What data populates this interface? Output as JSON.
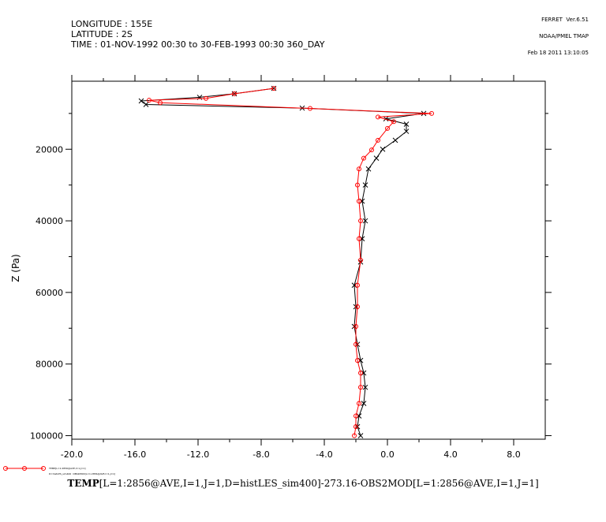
{
  "stamp": {
    "line1": "FERRET  Ver.6.51",
    "line2": "NOAA/PMEL TMAP",
    "line3": "Feb 18 2011 13:10:05"
  },
  "header": {
    "longitude": "LONGITUDE : 155E",
    "latitude": "LATITUDE : 2S",
    "time": "TIME : 01-NOV-1992 00:30 to 30-FEB-1993 00:30 360_DAY"
  },
  "caption": {
    "prefix": "TEMP",
    "rest": "[L=1:2856@AVE,I=1,J=1,D=histLES_sim400]-273.16-OBS2MOD[L=1:2856@AVE,I=1,J=1]"
  },
  "legend": {
    "line1": "TEMP[L=1:2856@AVE,I=1,J=1]",
    "line2": "D=histLES_sim400  OBS2MOD[L=1:2856@AVE,I=1,J=1]"
  },
  "colors": {
    "series_black": "#000000",
    "series_red": "#ff0000",
    "axis": "#000000"
  },
  "chart_data": {
    "type": "line",
    "title": "",
    "xlabel": "",
    "ylabel": "Z (Pa)",
    "xlim": [
      -20,
      10
    ],
    "ylim": [
      101000,
      1000
    ],
    "y_inverted": true,
    "x_ticks": [
      -20,
      -16,
      -12,
      -8,
      -4,
      0,
      4,
      8
    ],
    "x_tick_labels": [
      "-20.0",
      "-16.0",
      "-12.0",
      "-8.0",
      "-4.0",
      "0.0",
      "4.0",
      "8.0"
    ],
    "x_minor_ticks": [
      -18,
      -14,
      -10,
      -6,
      -2,
      2,
      6
    ],
    "y_ticks": [
      20000,
      40000,
      60000,
      80000,
      100000
    ],
    "y_tick_labels": [
      "20000",
      "40000",
      "60000",
      "80000",
      "100000"
    ],
    "y_minor_ticks": [
      10000,
      30000,
      50000,
      70000,
      90000
    ],
    "series": [
      {
        "marker": "x",
        "points": [
          [
            -7.2,
            3000
          ],
          [
            -9.7,
            4500
          ],
          [
            -11.9,
            5500
          ],
          [
            -15.6,
            6500
          ],
          [
            -15.3,
            7500
          ],
          [
            -5.4,
            8500
          ],
          [
            2.3,
            10000
          ],
          [
            -0.1,
            11500
          ],
          [
            1.2,
            13000
          ],
          [
            1.2,
            15000
          ],
          [
            0.5,
            17500
          ],
          [
            -0.3,
            20000
          ],
          [
            -0.7,
            22500
          ],
          [
            -1.2,
            25500
          ],
          [
            -1.4,
            30000
          ],
          [
            -1.6,
            34500
          ],
          [
            -1.4,
            40000
          ],
          [
            -1.6,
            45000
          ],
          [
            -1.7,
            51500
          ],
          [
            -2.1,
            58000
          ],
          [
            -2.0,
            64000
          ],
          [
            -2.1,
            69500
          ],
          [
            -1.9,
            74500
          ],
          [
            -1.7,
            79000
          ],
          [
            -1.5,
            82500
          ],
          [
            -1.4,
            86500
          ],
          [
            -1.5,
            91000
          ],
          [
            -1.8,
            94500
          ],
          [
            -1.9,
            97500
          ],
          [
            -1.7,
            100000
          ]
        ]
      },
      {
        "marker": "o",
        "points": [
          [
            -7.2,
            3000
          ],
          [
            -9.7,
            4500
          ],
          [
            -11.5,
            5800
          ],
          [
            -15.1,
            6300
          ],
          [
            -14.4,
            7000
          ],
          [
            -4.9,
            8600
          ],
          [
            2.8,
            10000
          ],
          [
            -0.6,
            11000
          ],
          [
            0.4,
            12300
          ],
          [
            0.0,
            14200
          ],
          [
            -0.6,
            17500
          ],
          [
            -1.0,
            20200
          ],
          [
            -1.5,
            22500
          ],
          [
            -1.8,
            25500
          ],
          [
            -1.9,
            30000
          ],
          [
            -1.8,
            34500
          ],
          [
            -1.7,
            40000
          ],
          [
            -1.8,
            45000
          ],
          [
            -1.7,
            51000
          ],
          [
            -1.9,
            58000
          ],
          [
            -1.9,
            64000
          ],
          [
            -2.0,
            69500
          ],
          [
            -2.0,
            74500
          ],
          [
            -1.9,
            79000
          ],
          [
            -1.7,
            82500
          ],
          [
            -1.7,
            86500
          ],
          [
            -1.8,
            91000
          ],
          [
            -2.0,
            94500
          ],
          [
            -2.0,
            97500
          ],
          [
            -2.1,
            100000
          ]
        ]
      }
    ]
  }
}
